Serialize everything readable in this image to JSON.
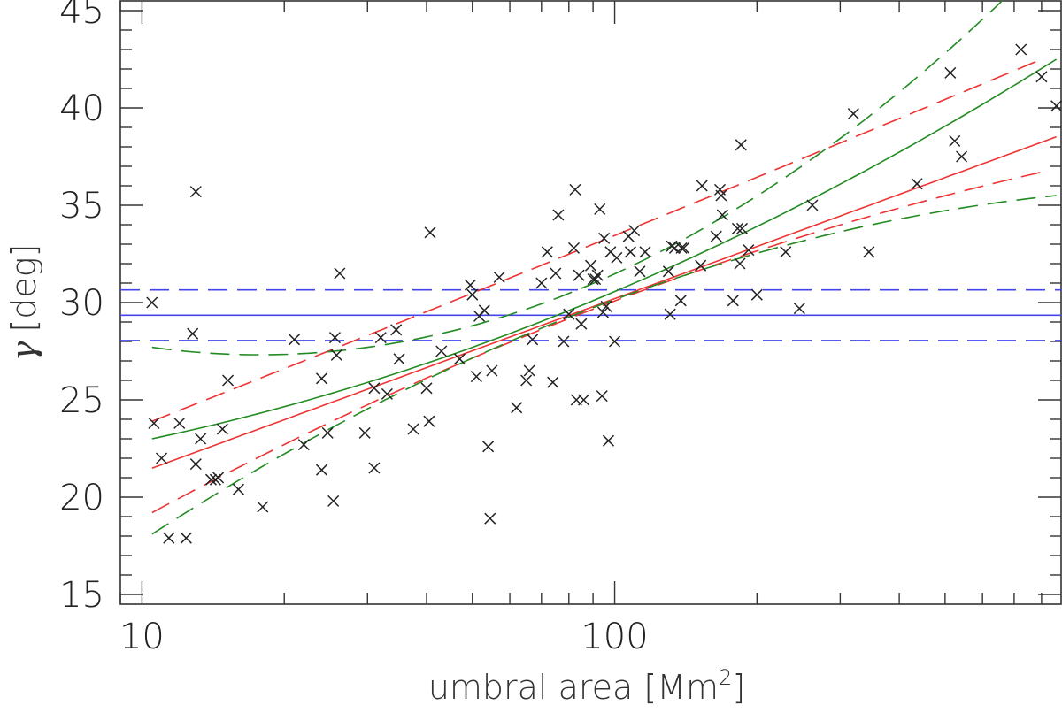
{
  "chart_data": {
    "type": "scatter",
    "xscale": "log",
    "xlim": [
      9,
      880
    ],
    "ylim": [
      14.5,
      45.5
    ],
    "xticks": [
      {
        "value": 10,
        "label": "10"
      },
      {
        "value": 100,
        "label": "100"
      }
    ],
    "yticks": [
      {
        "value": 15,
        "label": "15"
      },
      {
        "value": 20,
        "label": "20"
      },
      {
        "value": 25,
        "label": "25"
      },
      {
        "value": 30,
        "label": "30"
      },
      {
        "value": 35,
        "label": "35"
      },
      {
        "value": 40,
        "label": "40"
      },
      {
        "value": 45,
        "label": "45"
      }
    ],
    "xlabel": "umbral area [Mm",
    "xlabel_superscript": "2",
    "xlabel_suffix": "]",
    "ylabel_symbol": "γ",
    "ylabel_unit": "[deg]",
    "grid": false,
    "colors": {
      "points": "#222222",
      "linear_fit": "#ee3333",
      "quad_fit": "#228b22",
      "mean": "#4444ee"
    },
    "points": [
      [
        10.5,
        30.0
      ],
      [
        10.6,
        23.8
      ],
      [
        11.0,
        22.0
      ],
      [
        11.4,
        17.9
      ],
      [
        12.0,
        23.8
      ],
      [
        12.4,
        17.9
      ],
      [
        12.8,
        28.4
      ],
      [
        13.0,
        35.7
      ],
      [
        13.0,
        21.7
      ],
      [
        13.3,
        23.0
      ],
      [
        14.0,
        20.9
      ],
      [
        14.3,
        20.9
      ],
      [
        14.5,
        21.0
      ],
      [
        14.8,
        23.5
      ],
      [
        15.2,
        26.0
      ],
      [
        16.0,
        20.4
      ],
      [
        18.0,
        19.5
      ],
      [
        21.0,
        28.1
      ],
      [
        22.0,
        22.7
      ],
      [
        24.0,
        26.1
      ],
      [
        24.0,
        21.4
      ],
      [
        24.7,
        23.3
      ],
      [
        25.4,
        19.8
      ],
      [
        25.6,
        28.2
      ],
      [
        25.8,
        27.3
      ],
      [
        26.2,
        31.5
      ],
      [
        29.6,
        23.3
      ],
      [
        31.0,
        25.6
      ],
      [
        31.0,
        21.5
      ],
      [
        32.0,
        28.2
      ],
      [
        33.0,
        25.3
      ],
      [
        34.5,
        28.6
      ],
      [
        35.0,
        27.1
      ],
      [
        37.5,
        23.5
      ],
      [
        40.0,
        25.6
      ],
      [
        40.5,
        23.9
      ],
      [
        40.7,
        33.6
      ],
      [
        43.0,
        27.5
      ],
      [
        47.0,
        27.1
      ],
      [
        49.5,
        30.9
      ],
      [
        50.0,
        30.4
      ],
      [
        51.0,
        26.2
      ],
      [
        51.7,
        29.3
      ],
      [
        53.0,
        29.6
      ],
      [
        54.0,
        22.6
      ],
      [
        54.5,
        18.9
      ],
      [
        55.0,
        26.5
      ],
      [
        57.0,
        31.3
      ],
      [
        62.0,
        24.6
      ],
      [
        65.0,
        26.0
      ],
      [
        66.0,
        26.5
      ],
      [
        67.0,
        28.1
      ],
      [
        70.0,
        31.0
      ],
      [
        72.0,
        32.6
      ],
      [
        74.0,
        25.9
      ],
      [
        75.0,
        31.5
      ],
      [
        76.0,
        34.5
      ],
      [
        78.0,
        28.0
      ],
      [
        80.0,
        29.4
      ],
      [
        82.0,
        32.8
      ],
      [
        82.5,
        35.8
      ],
      [
        83.0,
        25.0
      ],
      [
        84.0,
        31.4
      ],
      [
        85.0,
        28.9
      ],
      [
        86.0,
        25.0
      ],
      [
        89.0,
        31.9
      ],
      [
        90.0,
        31.2
      ],
      [
        91.0,
        31.2
      ],
      [
        92.0,
        31.4
      ],
      [
        93.0,
        34.8
      ],
      [
        94.0,
        25.2
      ],
      [
        94.5,
        29.5
      ],
      [
        95.0,
        33.3
      ],
      [
        96.0,
        29.8
      ],
      [
        97.0,
        22.9
      ],
      [
        98.0,
        32.6
      ],
      [
        100.0,
        28.0
      ],
      [
        101.0,
        32.3
      ],
      [
        107.0,
        33.4
      ],
      [
        108.0,
        32.6
      ],
      [
        110.0,
        33.7
      ],
      [
        113.0,
        31.6
      ],
      [
        116.0,
        32.6
      ],
      [
        130.0,
        31.6
      ],
      [
        131.0,
        29.4
      ],
      [
        132.0,
        32.9
      ],
      [
        134.0,
        32.8
      ],
      [
        138.0,
        30.1
      ],
      [
        138.5,
        32.8
      ],
      [
        140.0,
        32.8
      ],
      [
        152.0,
        31.9
      ],
      [
        153.0,
        36.0
      ],
      [
        164.0,
        33.4
      ],
      [
        167.0,
        35.8
      ],
      [
        168.0,
        35.5
      ],
      [
        169.0,
        34.5
      ],
      [
        178.0,
        30.1
      ],
      [
        182.0,
        33.8
      ],
      [
        184.0,
        32.0
      ],
      [
        185.0,
        38.1
      ],
      [
        186.0,
        33.8
      ],
      [
        192.0,
        32.7
      ],
      [
        200.0,
        30.4
      ],
      [
        230.0,
        32.6
      ],
      [
        246.0,
        29.7
      ],
      [
        262.0,
        35.0
      ],
      [
        320.0,
        39.7
      ],
      [
        345.0,
        32.6
      ],
      [
        436.0,
        36.1
      ],
      [
        513.0,
        41.8
      ],
      [
        524.0,
        38.3
      ],
      [
        542.0,
        37.5
      ],
      [
        724.0,
        43.0
      ],
      [
        800.0,
        41.6
      ],
      [
        860.0,
        40.1
      ]
    ],
    "linear_fit": {
      "slope": 8.9,
      "intercept": 12.4
    },
    "linear_fit_band": [
      {
        "x": 10.5,
        "lower": 19.2,
        "upper": 23.9
      },
      {
        "x": 65,
        "lower": 28.3,
        "upper": 31.6
      },
      {
        "x": 800,
        "lower": 36.7,
        "upper": 42.5
      }
    ],
    "quad_fit": [
      {
        "x": 10.5,
        "y": 23.0
      },
      {
        "x": 50,
        "y": 27.7
      },
      {
        "x": 860,
        "y": 42.5
      }
    ],
    "quad_fit_band": {
      "upper": [
        {
          "x": 10.5,
          "y": 27.7
        },
        {
          "x": 30,
          "y": 27.7
        },
        {
          "x": 680,
          "y": 45.8
        }
      ],
      "lower": [
        {
          "x": 10.5,
          "y": 18.1
        },
        {
          "x": 60,
          "y": 28.0
        },
        {
          "x": 860,
          "y": 35.5
        }
      ]
    },
    "mean": {
      "value": 29.35,
      "lower": 28.05,
      "upper": 30.65
    }
  }
}
